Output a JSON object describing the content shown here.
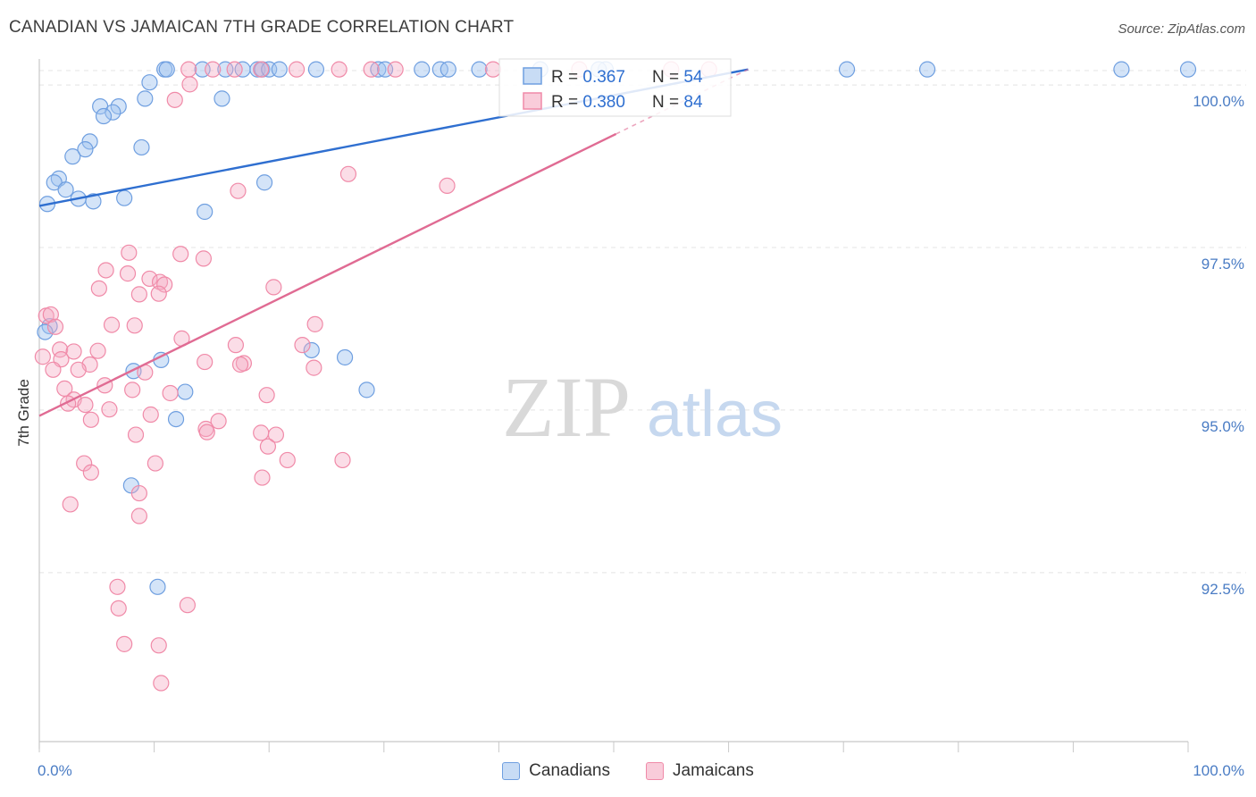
{
  "header": {
    "title": "CANADIAN VS JAMAICAN 7TH GRADE CORRELATION CHART",
    "source": "Source: ZipAtlas.com"
  },
  "watermark": {
    "zip": "ZIP",
    "atlas": "atlas"
  },
  "stats_legend": {
    "rows": [
      {
        "r_label": "R = ",
        "r_value": "0.367",
        "n_label": "N = ",
        "n_value": "54",
        "color": "#6f9fe0"
      },
      {
        "r_label": "R = ",
        "r_value": "0.380",
        "n_label": "N = ",
        "n_value": "84",
        "color": "#f08aa8"
      }
    ]
  },
  "chart_data": {
    "type": "scatter",
    "title": "CANADIAN VS JAMAICAN 7TH GRADE CORRELATION CHART",
    "xlabel": "",
    "ylabel": "7th Grade",
    "xlim": [
      0,
      100
    ],
    "ylim": [
      89.9,
      100.4
    ],
    "x_tick_labels": [
      {
        "value": 0,
        "label": "0.0%"
      },
      {
        "value": 100,
        "label": "100.0%"
      }
    ],
    "y_tick_labels": [
      {
        "value": 100,
        "label": "100.0%"
      },
      {
        "value": 97.5,
        "label": "97.5%"
      },
      {
        "value": 95,
        "label": "95.0%"
      },
      {
        "value": 92.5,
        "label": "92.5%"
      }
    ],
    "grid": true,
    "legend_position": "bottom",
    "series": [
      {
        "name": "Canadians",
        "color": "#6f9fe0",
        "line_color": "#2f6fd0",
        "trend": {
          "x0": 0,
          "y0": 98.14,
          "x1": 61.7,
          "y1": 100.24,
          "dash_to_x": 61.7
        },
        "points": [
          [
            10.9,
            100.24
          ],
          [
            11.1,
            100.24
          ],
          [
            14.2,
            100.24
          ],
          [
            16.2,
            100.24
          ],
          [
            17.7,
            100.24
          ],
          [
            19.0,
            100.24
          ],
          [
            19.4,
            100.24
          ],
          [
            20.0,
            100.24
          ],
          [
            20.9,
            100.24
          ],
          [
            24.1,
            100.24
          ],
          [
            29.5,
            100.24
          ],
          [
            30.1,
            100.24
          ],
          [
            33.3,
            100.24
          ],
          [
            34.9,
            100.24
          ],
          [
            35.6,
            100.24
          ],
          [
            38.3,
            100.24
          ],
          [
            49.3,
            100.24
          ],
          [
            43.6,
            100.24
          ],
          [
            48.7,
            100.24
          ],
          [
            70.3,
            100.24
          ],
          [
            77.3,
            100.24
          ],
          [
            94.2,
            100.24
          ],
          [
            100.0,
            100.24
          ],
          [
            9.6,
            100.04
          ],
          [
            9.2,
            99.79
          ],
          [
            15.9,
            99.79
          ],
          [
            5.3,
            99.67
          ],
          [
            6.9,
            99.67
          ],
          [
            6.4,
            99.58
          ],
          [
            5.6,
            99.52
          ],
          [
            4.4,
            99.13
          ],
          [
            8.9,
            99.04
          ],
          [
            4.0,
            99.01
          ],
          [
            2.9,
            98.9
          ],
          [
            1.7,
            98.56
          ],
          [
            1.3,
            98.5
          ],
          [
            2.3,
            98.39
          ],
          [
            3.4,
            98.25
          ],
          [
            4.7,
            98.21
          ],
          [
            7.4,
            98.26
          ],
          [
            0.7,
            98.17
          ],
          [
            14.4,
            98.05
          ],
          [
            19.6,
            98.5
          ],
          [
            0.9,
            96.29
          ],
          [
            10.6,
            95.77
          ],
          [
            23.7,
            95.92
          ],
          [
            26.6,
            95.81
          ],
          [
            8.2,
            95.6
          ],
          [
            12.7,
            95.28
          ],
          [
            28.5,
            95.31
          ],
          [
            11.9,
            94.86
          ],
          [
            8.0,
            93.84
          ],
          [
            10.3,
            92.28
          ],
          [
            0.5,
            96.2
          ]
        ]
      },
      {
        "name": "Jamaicans",
        "color": "#f08aa8",
        "line_color": "#e06b93",
        "trend": {
          "x0": 0,
          "y0": 94.91,
          "x1": 61.7,
          "y1": 100.24,
          "dash_to_x": 50.2
        },
        "points": [
          [
            13.0,
            100.24
          ],
          [
            15.1,
            100.24
          ],
          [
            17.0,
            100.24
          ],
          [
            19.3,
            100.24
          ],
          [
            22.4,
            100.24
          ],
          [
            26.1,
            100.24
          ],
          [
            28.9,
            100.24
          ],
          [
            31.0,
            100.24
          ],
          [
            39.5,
            100.24
          ],
          [
            47.0,
            100.24
          ],
          [
            55.0,
            100.24
          ],
          [
            58.3,
            100.24
          ],
          [
            13.1,
            100.01
          ],
          [
            11.8,
            99.77
          ],
          [
            26.9,
            98.63
          ],
          [
            17.3,
            98.37
          ],
          [
            35.5,
            98.45
          ],
          [
            7.8,
            97.42
          ],
          [
            12.3,
            97.4
          ],
          [
            14.3,
            97.33
          ],
          [
            5.8,
            97.15
          ],
          [
            7.7,
            97.1
          ],
          [
            9.6,
            97.02
          ],
          [
            10.5,
            96.97
          ],
          [
            10.9,
            96.93
          ],
          [
            5.2,
            96.87
          ],
          [
            8.7,
            96.78
          ],
          [
            10.4,
            96.79
          ],
          [
            20.4,
            96.89
          ],
          [
            0.6,
            96.45
          ],
          [
            1.0,
            96.47
          ],
          [
            6.3,
            96.31
          ],
          [
            8.3,
            96.3
          ],
          [
            24.0,
            96.32
          ],
          [
            1.4,
            96.28
          ],
          [
            12.4,
            96.1
          ],
          [
            17.1,
            96.0
          ],
          [
            22.9,
            96.0
          ],
          [
            1.8,
            95.93
          ],
          [
            3.0,
            95.9
          ],
          [
            5.1,
            95.91
          ],
          [
            1.9,
            95.78
          ],
          [
            4.4,
            95.7
          ],
          [
            14.4,
            95.74
          ],
          [
            17.8,
            95.72
          ],
          [
            17.5,
            95.7
          ],
          [
            0.3,
            95.82
          ],
          [
            1.2,
            95.62
          ],
          [
            3.4,
            95.62
          ],
          [
            9.2,
            95.58
          ],
          [
            23.9,
            95.65
          ],
          [
            2.2,
            95.33
          ],
          [
            3.0,
            95.16
          ],
          [
            5.7,
            95.38
          ],
          [
            8.1,
            95.31
          ],
          [
            11.4,
            95.26
          ],
          [
            19.8,
            95.23
          ],
          [
            2.5,
            95.1
          ],
          [
            4.0,
            95.08
          ],
          [
            6.1,
            95.01
          ],
          [
            9.7,
            94.93
          ],
          [
            4.5,
            94.85
          ],
          [
            15.6,
            94.83
          ],
          [
            14.5,
            94.71
          ],
          [
            14.6,
            94.66
          ],
          [
            8.4,
            94.62
          ],
          [
            19.3,
            94.65
          ],
          [
            20.6,
            94.62
          ],
          [
            19.9,
            94.44
          ],
          [
            21.6,
            94.23
          ],
          [
            10.1,
            94.18
          ],
          [
            26.4,
            94.23
          ],
          [
            3.9,
            94.18
          ],
          [
            4.5,
            94.04
          ],
          [
            19.4,
            93.96
          ],
          [
            8.7,
            93.72
          ],
          [
            2.7,
            93.55
          ],
          [
            8.7,
            93.37
          ],
          [
            6.8,
            92.28
          ],
          [
            6.9,
            91.95
          ],
          [
            12.9,
            92.0
          ],
          [
            7.4,
            91.4
          ],
          [
            10.4,
            91.38
          ],
          [
            10.6,
            90.8
          ]
        ]
      }
    ]
  }
}
